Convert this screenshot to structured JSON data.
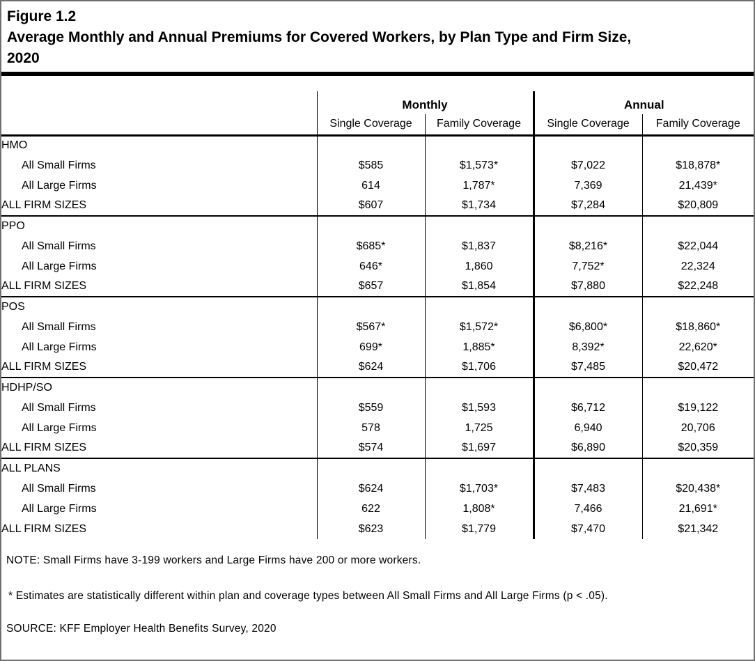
{
  "title": {
    "figure_label": "Figure 1.2",
    "text_lines": [
      "Average Monthly and Annual Premiums for Covered Workers, by Plan Type and Firm Size,",
      "2020"
    ]
  },
  "table": {
    "column_groups": [
      {
        "label": "Monthly"
      },
      {
        "label": "Annual"
      }
    ],
    "sub_headers": [
      "Single Coverage",
      "Family Coverage",
      "Single Coverage",
      "Family Coverage"
    ],
    "sections": [
      {
        "name": "HMO",
        "rows": [
          {
            "label": "All Small Firms",
            "bold": false,
            "values": [
              "$585",
              "$1,573*",
              "$7,022",
              "$18,878*"
            ]
          },
          {
            "label": "All Large Firms",
            "bold": false,
            "values": [
              "614",
              "1,787*",
              "7,369",
              "21,439*"
            ]
          },
          {
            "label": "ALL FIRM SIZES",
            "bold": true,
            "values": [
              "$607",
              "$1,734",
              "$7,284",
              "$20,809"
            ]
          }
        ]
      },
      {
        "name": "PPO",
        "rows": [
          {
            "label": "All Small Firms",
            "bold": false,
            "values": [
              "$685*",
              "$1,837",
              "$8,216*",
              "$22,044"
            ]
          },
          {
            "label": "All Large Firms",
            "bold": false,
            "values": [
              "646*",
              "1,860",
              "7,752*",
              "22,324"
            ]
          },
          {
            "label": "ALL FIRM SIZES",
            "bold": true,
            "values": [
              "$657",
              "$1,854",
              "$7,880",
              "$22,248"
            ]
          }
        ]
      },
      {
        "name": "POS",
        "rows": [
          {
            "label": "All Small Firms",
            "bold": false,
            "values": [
              "$567*",
              "$1,572*",
              "$6,800*",
              "$18,860*"
            ]
          },
          {
            "label": "All Large Firms",
            "bold": false,
            "values": [
              "699*",
              "1,885*",
              "8,392*",
              "22,620*"
            ]
          },
          {
            "label": "ALL FIRM SIZES",
            "bold": true,
            "values": [
              "$624",
              "$1,706",
              "$7,485",
              "$20,472"
            ]
          }
        ]
      },
      {
        "name": "HDHP/SO",
        "rows": [
          {
            "label": "All Small Firms",
            "bold": false,
            "values": [
              "$559",
              "$1,593",
              "$6,712",
              "$19,122"
            ]
          },
          {
            "label": "All Large Firms",
            "bold": false,
            "values": [
              "578",
              "1,725",
              "6,940",
              "20,706"
            ]
          },
          {
            "label": "ALL FIRM SIZES",
            "bold": true,
            "values": [
              "$574",
              "$1,697",
              "$6,890",
              "$20,359"
            ]
          }
        ]
      },
      {
        "name": "ALL PLANS",
        "rows": [
          {
            "label": "All Small Firms",
            "bold": false,
            "values": [
              "$624",
              "$1,703*",
              "$7,483",
              "$20,438*"
            ]
          },
          {
            "label": "All Large Firms",
            "bold": false,
            "values": [
              "622",
              "1,808*",
              "7,466",
              "21,691*"
            ]
          },
          {
            "label": "ALL FIRM SIZES",
            "bold": true,
            "values": [
              "$623",
              "$1,779",
              "$7,470",
              "$21,342"
            ]
          }
        ]
      }
    ]
  },
  "notes": {
    "note": "NOTE: Small Firms have 3-199 workers and Large Firms have 200 or more workers.",
    "significance": "* Estimates are statistically different within plan and coverage types between All Small Firms and All Large Firms (p < .05).",
    "source": "SOURCE: KFF Employer Health Benefits Survey, 2020"
  },
  "colors": {
    "text": "#000000",
    "background": "#ffffff",
    "table_border": "#000000",
    "outer_border": "#707070"
  }
}
